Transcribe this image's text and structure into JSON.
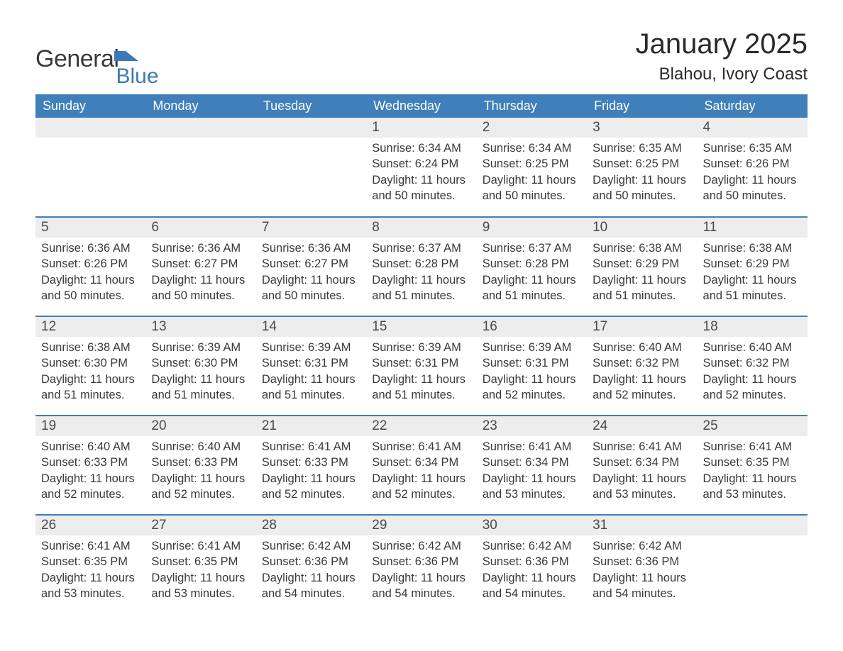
{
  "brand": {
    "general": "General",
    "blue": "Blue",
    "accent_color": "#3b79b7"
  },
  "header": {
    "month_title": "January 2025",
    "location": "Blahou, Ivory Coast"
  },
  "calendar": {
    "type": "table",
    "header_bg": "#3f7fba",
    "header_fg": "#ffffff",
    "row_separator_color": "#3f7fba",
    "daynum_bg": "#ededed",
    "columns": [
      "Sunday",
      "Monday",
      "Tuesday",
      "Wednesday",
      "Thursday",
      "Friday",
      "Saturday"
    ],
    "weeks": [
      [
        null,
        null,
        null,
        {
          "day": "1",
          "sunrise": "Sunrise: 6:34 AM",
          "sunset": "Sunset: 6:24 PM",
          "daylight": "Daylight: 11 hours and 50 minutes."
        },
        {
          "day": "2",
          "sunrise": "Sunrise: 6:34 AM",
          "sunset": "Sunset: 6:25 PM",
          "daylight": "Daylight: 11 hours and 50 minutes."
        },
        {
          "day": "3",
          "sunrise": "Sunrise: 6:35 AM",
          "sunset": "Sunset: 6:25 PM",
          "daylight": "Daylight: 11 hours and 50 minutes."
        },
        {
          "day": "4",
          "sunrise": "Sunrise: 6:35 AM",
          "sunset": "Sunset: 6:26 PM",
          "daylight": "Daylight: 11 hours and 50 minutes."
        }
      ],
      [
        {
          "day": "5",
          "sunrise": "Sunrise: 6:36 AM",
          "sunset": "Sunset: 6:26 PM",
          "daylight": "Daylight: 11 hours and 50 minutes."
        },
        {
          "day": "6",
          "sunrise": "Sunrise: 6:36 AM",
          "sunset": "Sunset: 6:27 PM",
          "daylight": "Daylight: 11 hours and 50 minutes."
        },
        {
          "day": "7",
          "sunrise": "Sunrise: 6:36 AM",
          "sunset": "Sunset: 6:27 PM",
          "daylight": "Daylight: 11 hours and 50 minutes."
        },
        {
          "day": "8",
          "sunrise": "Sunrise: 6:37 AM",
          "sunset": "Sunset: 6:28 PM",
          "daylight": "Daylight: 11 hours and 51 minutes."
        },
        {
          "day": "9",
          "sunrise": "Sunrise: 6:37 AM",
          "sunset": "Sunset: 6:28 PM",
          "daylight": "Daylight: 11 hours and 51 minutes."
        },
        {
          "day": "10",
          "sunrise": "Sunrise: 6:38 AM",
          "sunset": "Sunset: 6:29 PM",
          "daylight": "Daylight: 11 hours and 51 minutes."
        },
        {
          "day": "11",
          "sunrise": "Sunrise: 6:38 AM",
          "sunset": "Sunset: 6:29 PM",
          "daylight": "Daylight: 11 hours and 51 minutes."
        }
      ],
      [
        {
          "day": "12",
          "sunrise": "Sunrise: 6:38 AM",
          "sunset": "Sunset: 6:30 PM",
          "daylight": "Daylight: 11 hours and 51 minutes."
        },
        {
          "day": "13",
          "sunrise": "Sunrise: 6:39 AM",
          "sunset": "Sunset: 6:30 PM",
          "daylight": "Daylight: 11 hours and 51 minutes."
        },
        {
          "day": "14",
          "sunrise": "Sunrise: 6:39 AM",
          "sunset": "Sunset: 6:31 PM",
          "daylight": "Daylight: 11 hours and 51 minutes."
        },
        {
          "day": "15",
          "sunrise": "Sunrise: 6:39 AM",
          "sunset": "Sunset: 6:31 PM",
          "daylight": "Daylight: 11 hours and 51 minutes."
        },
        {
          "day": "16",
          "sunrise": "Sunrise: 6:39 AM",
          "sunset": "Sunset: 6:31 PM",
          "daylight": "Daylight: 11 hours and 52 minutes."
        },
        {
          "day": "17",
          "sunrise": "Sunrise: 6:40 AM",
          "sunset": "Sunset: 6:32 PM",
          "daylight": "Daylight: 11 hours and 52 minutes."
        },
        {
          "day": "18",
          "sunrise": "Sunrise: 6:40 AM",
          "sunset": "Sunset: 6:32 PM",
          "daylight": "Daylight: 11 hours and 52 minutes."
        }
      ],
      [
        {
          "day": "19",
          "sunrise": "Sunrise: 6:40 AM",
          "sunset": "Sunset: 6:33 PM",
          "daylight": "Daylight: 11 hours and 52 minutes."
        },
        {
          "day": "20",
          "sunrise": "Sunrise: 6:40 AM",
          "sunset": "Sunset: 6:33 PM",
          "daylight": "Daylight: 11 hours and 52 minutes."
        },
        {
          "day": "21",
          "sunrise": "Sunrise: 6:41 AM",
          "sunset": "Sunset: 6:33 PM",
          "daylight": "Daylight: 11 hours and 52 minutes."
        },
        {
          "day": "22",
          "sunrise": "Sunrise: 6:41 AM",
          "sunset": "Sunset: 6:34 PM",
          "daylight": "Daylight: 11 hours and 52 minutes."
        },
        {
          "day": "23",
          "sunrise": "Sunrise: 6:41 AM",
          "sunset": "Sunset: 6:34 PM",
          "daylight": "Daylight: 11 hours and 53 minutes."
        },
        {
          "day": "24",
          "sunrise": "Sunrise: 6:41 AM",
          "sunset": "Sunset: 6:34 PM",
          "daylight": "Daylight: 11 hours and 53 minutes."
        },
        {
          "day": "25",
          "sunrise": "Sunrise: 6:41 AM",
          "sunset": "Sunset: 6:35 PM",
          "daylight": "Daylight: 11 hours and 53 minutes."
        }
      ],
      [
        {
          "day": "26",
          "sunrise": "Sunrise: 6:41 AM",
          "sunset": "Sunset: 6:35 PM",
          "daylight": "Daylight: 11 hours and 53 minutes."
        },
        {
          "day": "27",
          "sunrise": "Sunrise: 6:41 AM",
          "sunset": "Sunset: 6:35 PM",
          "daylight": "Daylight: 11 hours and 53 minutes."
        },
        {
          "day": "28",
          "sunrise": "Sunrise: 6:42 AM",
          "sunset": "Sunset: 6:36 PM",
          "daylight": "Daylight: 11 hours and 54 minutes."
        },
        {
          "day": "29",
          "sunrise": "Sunrise: 6:42 AM",
          "sunset": "Sunset: 6:36 PM",
          "daylight": "Daylight: 11 hours and 54 minutes."
        },
        {
          "day": "30",
          "sunrise": "Sunrise: 6:42 AM",
          "sunset": "Sunset: 6:36 PM",
          "daylight": "Daylight: 11 hours and 54 minutes."
        },
        {
          "day": "31",
          "sunrise": "Sunrise: 6:42 AM",
          "sunset": "Sunset: 6:36 PM",
          "daylight": "Daylight: 11 hours and 54 minutes."
        },
        null
      ]
    ]
  }
}
